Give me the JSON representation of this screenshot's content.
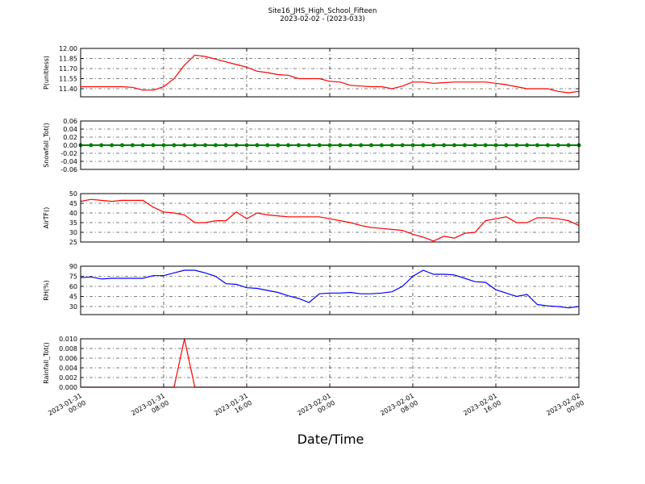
{
  "title": "Site16_JHS_High_School_Fifteen",
  "subtitle": "2023-02-02 - (2023-033)",
  "xlabel": "Date/Time",
  "chart_data": [
    {
      "type": "line",
      "ylabel": "P(unitless)",
      "color": "#ff0000",
      "grid": true,
      "xlim": [
        "2023-01-31 00:00",
        "2023-02-02 00:00"
      ],
      "xticks": [
        "2023-01-31 00:00",
        "2023-01-31 08:00",
        "2023-01-31 16:00",
        "2023-02-01 00:00",
        "2023-02-01 08:00",
        "2023-02-01 16:00",
        "2023-02-02 00:00"
      ],
      "ylim": [
        11.28,
        12.0
      ],
      "yticks": [
        {
          "value": 11.4,
          "label": "11.40"
        },
        11.55,
        {
          "value": 11.7,
          "label": "11.70"
        },
        11.85,
        {
          "value": 12.0,
          "label": "12.00"
        }
      ],
      "x": [
        "2023-01-31 00:00",
        "2023-01-31 01:00",
        "2023-01-31 02:00",
        "2023-01-31 03:00",
        "2023-01-31 04:00",
        "2023-01-31 05:00",
        "2023-01-31 06:00",
        "2023-01-31 07:00",
        "2023-01-31 08:00",
        "2023-01-31 09:00",
        "2023-01-31 10:00",
        "2023-01-31 11:00",
        "2023-01-31 12:00",
        "2023-01-31 13:00",
        "2023-01-31 14:00",
        "2023-01-31 15:00",
        "2023-01-31 16:00",
        "2023-01-31 17:00",
        "2023-01-31 18:00",
        "2023-01-31 19:00",
        "2023-01-31 20:00",
        "2023-01-31 21:00",
        "2023-01-31 22:00",
        "2023-01-31 23:00",
        "2023-02-01 00:00",
        "2023-02-01 01:00",
        "2023-02-01 02:00",
        "2023-02-01 03:00",
        "2023-02-01 04:00",
        "2023-02-01 05:00",
        "2023-02-01 06:00",
        "2023-02-01 07:00",
        "2023-02-01 08:00",
        "2023-02-01 09:00",
        "2023-02-01 10:00",
        "2023-02-01 11:00",
        "2023-02-01 12:00",
        "2023-02-01 13:00",
        "2023-02-01 14:00",
        "2023-02-01 15:00",
        "2023-02-01 16:00",
        "2023-02-01 17:00",
        "2023-02-01 18:00",
        "2023-02-01 19:00",
        "2023-02-01 20:00",
        "2023-02-01 21:00",
        "2023-02-01 22:00",
        "2023-02-01 23:00",
        "2023-02-02 00:00"
      ],
      "values": [
        11.43,
        11.43,
        11.43,
        11.43,
        11.43,
        11.42,
        11.38,
        11.38,
        11.43,
        11.55,
        11.75,
        11.9,
        11.88,
        11.84,
        11.8,
        11.76,
        11.72,
        11.66,
        11.64,
        11.61,
        11.6,
        11.55,
        11.55,
        11.55,
        11.51,
        11.5,
        11.45,
        11.44,
        11.43,
        11.43,
        11.4,
        11.44,
        11.5,
        11.5,
        11.48,
        11.49,
        11.5,
        11.5,
        11.5,
        11.5,
        11.48,
        11.46,
        11.43,
        11.4,
        11.4,
        11.4,
        11.36,
        11.34,
        11.36
      ]
    },
    {
      "type": "line",
      "ylabel": "Snowfall_Tot()",
      "color": "#008000",
      "grid": true,
      "marker": true,
      "xlim": [
        "2023-01-31 00:00",
        "2023-02-02 00:00"
      ],
      "xticks": [
        "2023-01-31 00:00",
        "2023-01-31 08:00",
        "2023-01-31 16:00",
        "2023-02-01 00:00",
        "2023-02-01 08:00",
        "2023-02-01 16:00",
        "2023-02-02 00:00"
      ],
      "ylim": [
        -0.06,
        0.06
      ],
      "yticks": [
        -0.06,
        -0.04,
        -0.02,
        {
          "value": 0,
          "label": "0.00"
        },
        0.02,
        0.04,
        0.06
      ],
      "x": [
        "2023-01-31 00:00",
        "2023-01-31 01:00",
        "2023-01-31 02:00",
        "2023-01-31 03:00",
        "2023-01-31 04:00",
        "2023-01-31 05:00",
        "2023-01-31 06:00",
        "2023-01-31 07:00",
        "2023-01-31 08:00",
        "2023-01-31 09:00",
        "2023-01-31 10:00",
        "2023-01-31 11:00",
        "2023-01-31 12:00",
        "2023-01-31 13:00",
        "2023-01-31 14:00",
        "2023-01-31 15:00",
        "2023-01-31 16:00",
        "2023-01-31 17:00",
        "2023-01-31 18:00",
        "2023-01-31 19:00",
        "2023-01-31 20:00",
        "2023-01-31 21:00",
        "2023-01-31 22:00",
        "2023-01-31 23:00",
        "2023-02-01 00:00",
        "2023-02-01 01:00",
        "2023-02-01 02:00",
        "2023-02-01 03:00",
        "2023-02-01 04:00",
        "2023-02-01 05:00",
        "2023-02-01 06:00",
        "2023-02-01 07:00",
        "2023-02-01 08:00",
        "2023-02-01 09:00",
        "2023-02-01 10:00",
        "2023-02-01 11:00",
        "2023-02-01 12:00",
        "2023-02-01 13:00",
        "2023-02-01 14:00",
        "2023-02-01 15:00",
        "2023-02-01 16:00",
        "2023-02-01 17:00",
        "2023-02-01 18:00",
        "2023-02-01 19:00",
        "2023-02-01 20:00",
        "2023-02-01 21:00",
        "2023-02-01 22:00",
        "2023-02-01 23:00",
        "2023-02-02 00:00"
      ],
      "values": [
        0,
        0,
        0,
        0,
        0,
        0,
        0,
        0,
        0,
        0,
        0,
        0,
        0,
        0,
        0,
        0,
        0,
        0,
        0,
        0,
        0,
        0,
        0,
        0,
        0,
        0,
        0,
        0,
        0,
        0,
        0,
        0,
        0,
        0,
        0,
        0,
        0,
        0,
        0,
        0,
        0,
        0,
        0,
        0,
        0,
        0,
        0,
        0,
        0
      ]
    },
    {
      "type": "line",
      "ylabel": "AirTF()",
      "color": "#ff0000",
      "grid": true,
      "xlim": [
        "2023-01-31 00:00",
        "2023-02-02 00:00"
      ],
      "xticks": [
        "2023-01-31 00:00",
        "2023-01-31 08:00",
        "2023-01-31 16:00",
        "2023-02-01 00:00",
        "2023-02-01 08:00",
        "2023-02-01 16:00",
        "2023-02-02 00:00"
      ],
      "ylim": [
        25,
        50
      ],
      "yticks": [
        25,
        30,
        35,
        40,
        45,
        50
      ],
      "x": [
        "2023-01-31 00:00",
        "2023-01-31 01:00",
        "2023-01-31 02:00",
        "2023-01-31 03:00",
        "2023-01-31 04:00",
        "2023-01-31 05:00",
        "2023-01-31 06:00",
        "2023-01-31 07:00",
        "2023-01-31 08:00",
        "2023-01-31 09:00",
        "2023-01-31 10:00",
        "2023-01-31 11:00",
        "2023-01-31 12:00",
        "2023-01-31 13:00",
        "2023-01-31 14:00",
        "2023-01-31 15:00",
        "2023-01-31 16:00",
        "2023-01-31 17:00",
        "2023-01-31 18:00",
        "2023-01-31 19:00",
        "2023-01-31 20:00",
        "2023-01-31 21:00",
        "2023-01-31 22:00",
        "2023-01-31 23:00",
        "2023-02-01 00:00",
        "2023-02-01 01:00",
        "2023-02-01 02:00",
        "2023-02-01 03:00",
        "2023-02-01 04:00",
        "2023-02-01 05:00",
        "2023-02-01 06:00",
        "2023-02-01 07:00",
        "2023-02-01 08:00",
        "2023-02-01 09:00",
        "2023-02-01 10:00",
        "2023-02-01 11:00",
        "2023-02-01 12:00",
        "2023-02-01 13:00",
        "2023-02-01 14:00",
        "2023-02-01 15:00",
        "2023-02-01 16:00",
        "2023-02-01 17:00",
        "2023-02-01 18:00",
        "2023-02-01 19:00",
        "2023-02-01 20:00",
        "2023-02-01 21:00",
        "2023-02-01 22:00",
        "2023-02-01 23:00",
        "2023-02-02 00:00"
      ],
      "values": [
        46,
        47,
        46.5,
        46,
        46.5,
        46.5,
        46.5,
        43,
        40.5,
        40,
        39,
        35,
        35,
        36,
        36,
        40.5,
        37,
        40,
        39,
        38.5,
        38,
        38,
        38,
        38,
        37,
        36,
        35,
        33.5,
        32.5,
        32,
        31.5,
        31,
        29,
        27.5,
        25.5,
        28,
        27,
        29.5,
        30,
        36,
        37,
        38,
        35,
        35,
        37.5,
        37.5,
        37,
        36,
        33.5
      ]
    },
    {
      "type": "line",
      "ylabel": "RH(%)",
      "color": "#0000ff",
      "grid": true,
      "xlim": [
        "2023-01-31 00:00",
        "2023-02-02 00:00"
      ],
      "xticks": [
        "2023-01-31 00:00",
        "2023-01-31 08:00",
        "2023-01-31 16:00",
        "2023-02-01 00:00",
        "2023-02-01 08:00",
        "2023-02-01 16:00",
        "2023-02-02 00:00"
      ],
      "ylim": [
        18,
        90
      ],
      "yticks": [
        30,
        45,
        60,
        75,
        90
      ],
      "x": [
        "2023-01-31 00:00",
        "2023-01-31 01:00",
        "2023-01-31 02:00",
        "2023-01-31 03:00",
        "2023-01-31 04:00",
        "2023-01-31 05:00",
        "2023-01-31 06:00",
        "2023-01-31 07:00",
        "2023-01-31 08:00",
        "2023-01-31 09:00",
        "2023-01-31 10:00",
        "2023-01-31 11:00",
        "2023-01-31 12:00",
        "2023-01-31 13:00",
        "2023-01-31 14:00",
        "2023-01-31 15:00",
        "2023-01-31 16:00",
        "2023-01-31 17:00",
        "2023-01-31 18:00",
        "2023-01-31 19:00",
        "2023-01-31 20:00",
        "2023-01-31 21:00",
        "2023-01-31 22:00",
        "2023-01-31 23:00",
        "2023-02-01 00:00",
        "2023-02-01 01:00",
        "2023-02-01 02:00",
        "2023-02-01 03:00",
        "2023-02-01 04:00",
        "2023-02-01 05:00",
        "2023-02-01 06:00",
        "2023-02-01 07:00",
        "2023-02-01 08:00",
        "2023-02-01 09:00",
        "2023-02-01 10:00",
        "2023-02-01 11:00",
        "2023-02-01 12:00",
        "2023-02-01 13:00",
        "2023-02-01 14:00",
        "2023-02-01 15:00",
        "2023-02-01 16:00",
        "2023-02-01 17:00",
        "2023-02-01 18:00",
        "2023-02-01 19:00",
        "2023-02-01 20:00",
        "2023-02-01 21:00",
        "2023-02-01 22:00",
        "2023-02-01 23:00",
        "2023-02-02 00:00"
      ],
      "values": [
        73,
        74,
        71,
        72,
        72,
        72,
        72,
        76,
        76,
        80,
        84,
        84,
        80,
        75,
        64,
        63,
        58,
        57,
        54,
        51,
        46,
        42,
        36,
        49,
        50,
        50,
        51,
        49,
        49,
        50,
        52,
        60,
        75,
        84,
        78,
        78,
        77,
        72,
        67,
        66,
        55,
        50,
        45,
        48,
        33,
        31,
        30,
        28,
        30
      ]
    },
    {
      "type": "line",
      "ylabel": "Rainfall_Tot()",
      "color": "#ff0000",
      "grid": true,
      "xlim": [
        "2023-01-31 00:00",
        "2023-02-02 00:00"
      ],
      "xticks": [
        "2023-01-31 00:00",
        "2023-01-31 08:00",
        "2023-01-31 16:00",
        "2023-02-01 00:00",
        "2023-02-01 08:00",
        "2023-02-01 16:00",
        "2023-02-02 00:00"
      ],
      "ylim": [
        0,
        0.01
      ],
      "yticks": [
        {
          "value": 0,
          "label": "0.000"
        },
        {
          "value": 0.002,
          "label": "0.002"
        },
        {
          "value": 0.004,
          "label": "0.004"
        },
        {
          "value": 0.006,
          "label": "0.006"
        },
        {
          "value": 0.008,
          "label": "0.008"
        },
        {
          "value": 0.01,
          "label": "0.010"
        }
      ],
      "x": [
        "2023-01-31 00:00",
        "2023-01-31 01:00",
        "2023-01-31 02:00",
        "2023-01-31 03:00",
        "2023-01-31 04:00",
        "2023-01-31 05:00",
        "2023-01-31 06:00",
        "2023-01-31 07:00",
        "2023-01-31 08:00",
        "2023-01-31 09:00",
        "2023-01-31 10:00",
        "2023-01-31 11:00",
        "2023-01-31 12:00",
        "2023-01-31 13:00",
        "2023-01-31 14:00",
        "2023-01-31 15:00",
        "2023-01-31 16:00",
        "2023-01-31 17:00",
        "2023-01-31 18:00",
        "2023-01-31 19:00",
        "2023-01-31 20:00",
        "2023-01-31 21:00",
        "2023-01-31 22:00",
        "2023-01-31 23:00",
        "2023-02-01 00:00",
        "2023-02-01 01:00",
        "2023-02-01 02:00",
        "2023-02-01 03:00",
        "2023-02-01 04:00",
        "2023-02-01 05:00",
        "2023-02-01 06:00",
        "2023-02-01 07:00",
        "2023-02-01 08:00",
        "2023-02-01 09:00",
        "2023-02-01 10:00",
        "2023-02-01 11:00",
        "2023-02-01 12:00",
        "2023-02-01 13:00",
        "2023-02-01 14:00",
        "2023-02-01 15:00",
        "2023-02-01 16:00",
        "2023-02-01 17:00",
        "2023-02-01 18:00",
        "2023-02-01 19:00",
        "2023-02-01 20:00",
        "2023-02-01 21:00",
        "2023-02-01 22:00",
        "2023-02-01 23:00",
        "2023-02-02 00:00"
      ],
      "values": [
        0,
        0,
        0,
        0,
        0,
        0,
        0,
        0,
        0,
        0,
        0.01,
        0,
        0,
        0,
        0,
        0,
        0,
        0,
        0,
        0,
        0,
        0,
        0,
        0,
        0,
        0,
        0,
        0,
        0,
        0,
        0,
        0,
        0,
        0,
        0,
        0,
        0,
        0,
        0,
        0,
        0,
        0,
        0,
        0,
        0,
        0,
        0,
        0,
        0
      ]
    }
  ]
}
